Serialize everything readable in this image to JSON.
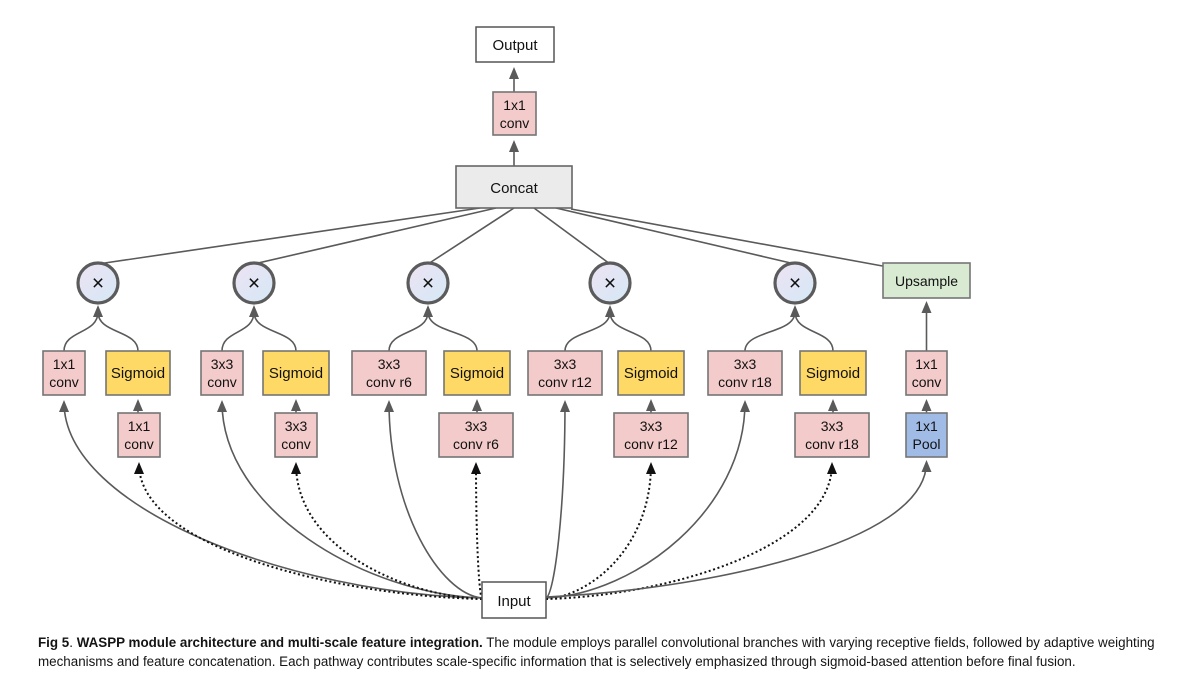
{
  "diagram": {
    "output": {
      "label": "Output"
    },
    "top_conv": {
      "lines": [
        "1x1",
        "conv"
      ]
    },
    "concat": {
      "label": "Concat"
    },
    "input": {
      "label": "Input"
    },
    "upsample": {
      "label": "Upsample"
    },
    "multiply_symbol": "×",
    "branches": [
      {
        "conv": [
          "1x1",
          "conv"
        ],
        "sigmoid": "Sigmoid",
        "pre": [
          "1x1",
          "conv"
        ]
      },
      {
        "conv": [
          "3x3",
          "conv"
        ],
        "sigmoid": "Sigmoid",
        "pre": [
          "3x3",
          "conv"
        ]
      },
      {
        "conv": [
          "3x3",
          "conv r6"
        ],
        "sigmoid": "Sigmoid",
        "pre": [
          "3x3",
          "conv r6"
        ]
      },
      {
        "conv": [
          "3x3",
          "conv r12"
        ],
        "sigmoid": "Sigmoid",
        "pre": [
          "3x3",
          "conv r12"
        ]
      },
      {
        "conv": [
          "3x3",
          "conv r18"
        ],
        "sigmoid": "Sigmoid",
        "pre": [
          "3x3",
          "conv r18"
        ]
      }
    ],
    "pool_branch": {
      "conv": [
        "1x1",
        "conv"
      ],
      "pool": [
        "1x1",
        "Pool"
      ]
    }
  },
  "colors": {
    "conv_fill": "#f3cbcb",
    "sigmoid_fill": "#ffd966",
    "concat_fill": "#ebebeb",
    "upsample_fill": "#d9ead3",
    "pool_fill": "#a0bce6",
    "io_fill": "#ffffff",
    "box_stroke": "#757575",
    "io_stroke": "#555555",
    "circle_stroke": "#5b5b5b",
    "circle_grad_start": "#eee3f3",
    "circle_grad_end": "#d4e8f6",
    "edge": "#5a5a5a",
    "dotted_edge": "#111111",
    "multiply_glyph": "#555555"
  },
  "caption": {
    "fig_label": "Fig 5",
    "dot": ". ",
    "bold_title": "WASPP module architecture and multi-scale feature integration.",
    "text": "The module employs parallel convolutional branches with varying receptive fields, followed by adaptive weighting mechanisms and feature concatenation. Each pathway contributes scale-specific information that is selectively emphasized through sigmoid-based attention before final fusion."
  }
}
